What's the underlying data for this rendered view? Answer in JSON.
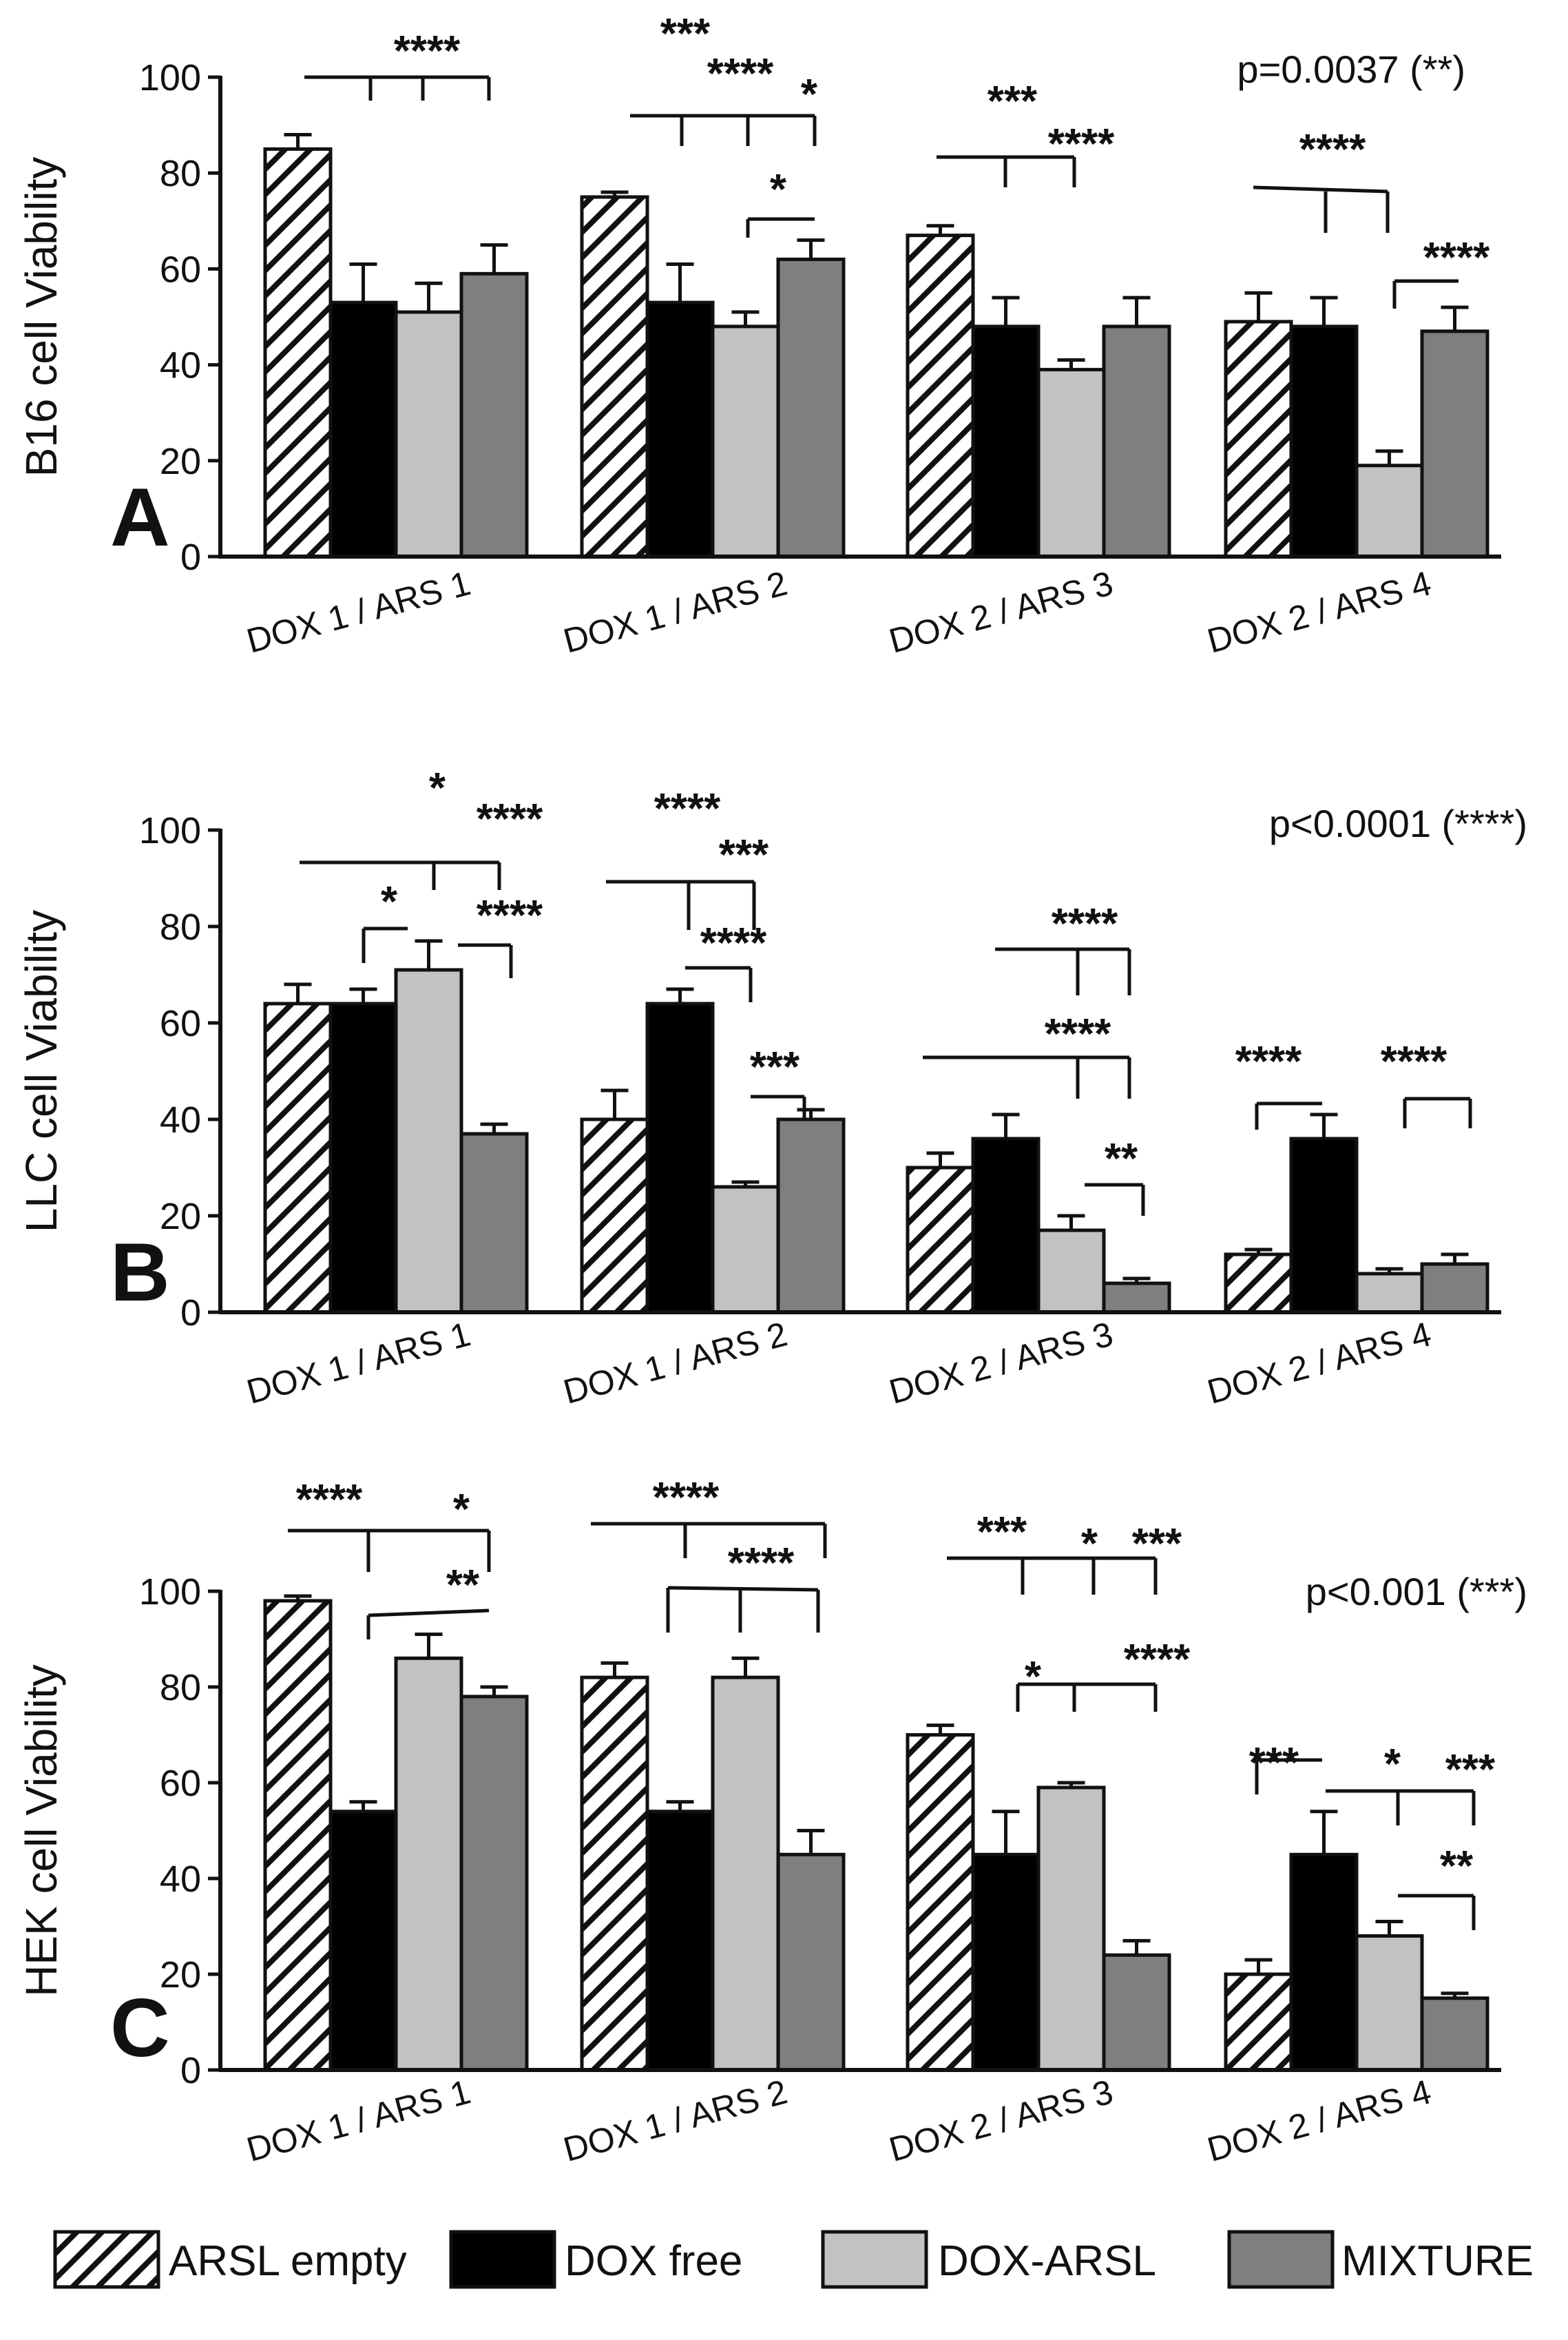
{
  "chart_data": [
    {
      "type": "bar",
      "panel": "A",
      "ylabel": "B16 cell Viability",
      "ylim": [
        0,
        100
      ],
      "yticks": [
        "0",
        "20",
        "40",
        "60",
        "80",
        "100"
      ],
      "categories": [
        "DOX 1 / ARS 1",
        "DOX 1 / ARS 2",
        "DOX 2 / ARS 3",
        "DOX 2 / ARS 4"
      ],
      "pvalue_text": "p=0.0037 (**)",
      "series": [
        {
          "name": "ARSL empty",
          "values": [
            85,
            75,
            67,
            49
          ],
          "errors": [
            3,
            1,
            2,
            6
          ]
        },
        {
          "name": "DOX free",
          "values": [
            53,
            53,
            48,
            48
          ],
          "errors": [
            8,
            8,
            6,
            6
          ]
        },
        {
          "name": "DOX-ARSL",
          "values": [
            51,
            48,
            39,
            19
          ],
          "errors": [
            6,
            3,
            2,
            3
          ]
        },
        {
          "name": "MIXTURE",
          "values": [
            59,
            62,
            48,
            47
          ],
          "errors": [
            6,
            4,
            6,
            5
          ]
        }
      ],
      "annotations": [
        "****",
        "***",
        "****",
        "*",
        "*",
        "***",
        "****",
        "****",
        "****"
      ]
    },
    {
      "type": "bar",
      "panel": "B",
      "ylabel": "LLC cell Viability",
      "ylim": [
        0,
        100
      ],
      "yticks": [
        "0",
        "20",
        "40",
        "60",
        "80",
        "100"
      ],
      "categories": [
        "DOX 1 / ARS 1",
        "DOX 1 / ARS 2",
        "DOX 2 / ARS 3",
        "DOX 2 / ARS 4"
      ],
      "pvalue_text": "p<0.0001 (****)",
      "series": [
        {
          "name": "ARSL empty",
          "values": [
            64,
            40,
            30,
            12
          ],
          "errors": [
            4,
            6,
            3,
            1
          ]
        },
        {
          "name": "DOX free",
          "values": [
            64,
            64,
            36,
            36
          ],
          "errors": [
            3,
            3,
            5,
            5
          ]
        },
        {
          "name": "DOX-ARSL",
          "values": [
            71,
            26,
            17,
            8
          ],
          "errors": [
            6,
            1,
            3,
            1
          ]
        },
        {
          "name": "MIXTURE",
          "values": [
            37,
            40,
            6,
            10
          ],
          "errors": [
            2,
            2,
            1,
            2
          ]
        }
      ],
      "annotations": [
        "*",
        "****",
        "*",
        "****",
        "****",
        "***",
        "****",
        "***",
        "****",
        "****",
        "**",
        "****",
        "****"
      ]
    },
    {
      "type": "bar",
      "panel": "C",
      "ylabel": "HEK cell Viability",
      "ylim": [
        0,
        100
      ],
      "yticks": [
        "0",
        "20",
        "40",
        "60",
        "80",
        "100"
      ],
      "categories": [
        "DOX 1 / ARS 1",
        "DOX 1 / ARS 2",
        "DOX 2 / ARS 3",
        "DOX 2 / ARS 4"
      ],
      "pvalue_text": "p<0.001 (***)",
      "series": [
        {
          "name": "ARSL empty",
          "values": [
            98,
            82,
            70,
            20
          ],
          "errors": [
            1,
            3,
            2,
            3
          ]
        },
        {
          "name": "DOX free",
          "values": [
            54,
            54,
            45,
            45
          ],
          "errors": [
            2,
            2,
            9,
            9
          ]
        },
        {
          "name": "DOX-ARSL",
          "values": [
            86,
            82,
            59,
            28
          ],
          "errors": [
            5,
            4,
            1,
            3
          ]
        },
        {
          "name": "MIXTURE",
          "values": [
            78,
            45,
            24,
            15
          ],
          "errors": [
            2,
            5,
            3,
            1
          ]
        }
      ],
      "annotations": [
        "****",
        "*",
        "**",
        "****",
        "****",
        "***",
        "*",
        "***",
        "*",
        "****",
        "***",
        "*",
        "***",
        "**"
      ]
    }
  ],
  "legend": [
    {
      "label": "ARSL empty",
      "style": "hatch"
    },
    {
      "label": "DOX free",
      "style": "solid",
      "color": "#000000"
    },
    {
      "label": "DOX-ARSL",
      "style": "solid",
      "color": "#c2c2c2"
    },
    {
      "label": "MIXTURE",
      "style": "solid",
      "color": "#7f7f7f"
    }
  ],
  "colors": {
    "dox_free": "#000000",
    "dox_arsl": "#c2c2c2",
    "mixture": "#7f7f7f",
    "axis": "#111111"
  }
}
